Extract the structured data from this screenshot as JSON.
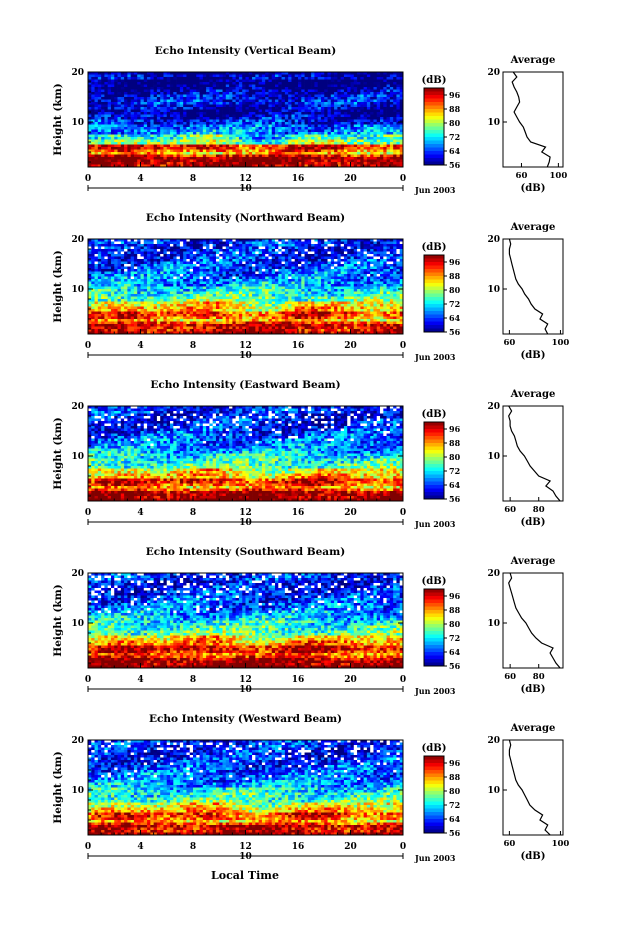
{
  "figure": {
    "x_axis_label": "Local Time",
    "date_label": "Jun 2003",
    "date_tick_label": "10",
    "y_axis_label": "Height (km)",
    "colorbar_unit": "(dB)",
    "colorbar_ticks": [
      "56",
      "64",
      "72",
      "80",
      "88",
      "96"
    ],
    "average_title": "Average",
    "average_xlabel": "(dB)"
  },
  "chart_data": [
    {
      "type": "heatmap",
      "title": "Echo Intensity (Vertical Beam)",
      "x_ticks": [
        "0",
        "4",
        "8",
        "12",
        "16",
        "20",
        "0"
      ],
      "xlim": [
        0,
        24
      ],
      "y_ticks": [
        "20",
        "10"
      ],
      "ylim": [
        1,
        20
      ],
      "colorbar": {
        "range": [
          56,
          100
        ],
        "ticks": [
          56,
          64,
          72,
          80,
          88,
          96
        ]
      },
      "average_profile": {
        "x_ticks": [
          "60",
          "100"
        ],
        "xlim": [
          40,
          105
        ],
        "height_km": [
          1,
          2,
          3,
          4,
          5,
          6,
          7,
          8,
          9,
          10,
          11,
          12,
          13,
          14,
          15,
          16,
          17,
          18,
          19,
          20
        ],
        "db": [
          88,
          90,
          91,
          82,
          86,
          70,
          66,
          64,
          62,
          58,
          55,
          52,
          55,
          58,
          57,
          55,
          52,
          50,
          55,
          51
        ]
      }
    },
    {
      "type": "heatmap",
      "title": "Echo Intensity (Northward Beam)",
      "x_ticks": [
        "0",
        "4",
        "8",
        "12",
        "16",
        "20",
        "0"
      ],
      "xlim": [
        0,
        24
      ],
      "y_ticks": [
        "20",
        "10"
      ],
      "ylim": [
        1,
        20
      ],
      "colorbar": {
        "range": [
          56,
          100
        ],
        "ticks": [
          56,
          64,
          72,
          80,
          88,
          96
        ]
      },
      "average_profile": {
        "x_ticks": [
          "60",
          "100"
        ],
        "xlim": [
          55,
          102
        ],
        "height_km": [
          1,
          2,
          3,
          4,
          5,
          6,
          7,
          8,
          9,
          10,
          11,
          12,
          13,
          14,
          15,
          16,
          17,
          18,
          19,
          20
        ],
        "db": [
          90,
          88,
          90,
          84,
          86,
          80,
          77,
          75,
          72,
          70,
          67,
          65,
          64,
          63,
          62,
          61,
          60,
          60,
          61,
          60
        ]
      }
    },
    {
      "type": "heatmap",
      "title": "Echo Intensity (Eastward Beam)",
      "x_ticks": [
        "0",
        "4",
        "8",
        "12",
        "16",
        "20",
        "0"
      ],
      "xlim": [
        0,
        24
      ],
      "y_ticks": [
        "20",
        "10"
      ],
      "ylim": [
        1,
        20
      ],
      "colorbar": {
        "range": [
          56,
          100
        ],
        "ticks": [
          56,
          64,
          72,
          80,
          88,
          96
        ]
      },
      "average_profile": {
        "x_ticks": [
          "60",
          "80"
        ],
        "xlim": [
          55,
          97
        ],
        "height_km": [
          1,
          2,
          3,
          4,
          5,
          6,
          7,
          8,
          9,
          10,
          11,
          12,
          13,
          14,
          15,
          16,
          17,
          18,
          19,
          20
        ],
        "db": [
          95,
          92,
          90,
          85,
          88,
          80,
          77,
          74,
          72,
          70,
          67,
          65,
          64,
          63,
          61,
          60,
          60,
          59,
          61,
          59
        ]
      }
    },
    {
      "type": "heatmap",
      "title": "Echo Intensity (Southward Beam)",
      "x_ticks": [
        "0",
        "4",
        "8",
        "12",
        "16",
        "20",
        "0"
      ],
      "xlim": [
        0,
        24
      ],
      "y_ticks": [
        "20",
        "10"
      ],
      "ylim": [
        1,
        20
      ],
      "colorbar": {
        "range": [
          56,
          100
        ],
        "ticks": [
          56,
          64,
          72,
          80,
          88,
          96
        ]
      },
      "average_profile": {
        "x_ticks": [
          "60",
          "80"
        ],
        "xlim": [
          55,
          97
        ],
        "height_km": [
          1,
          2,
          3,
          4,
          5,
          6,
          7,
          8,
          9,
          10,
          11,
          12,
          13,
          14,
          15,
          16,
          17,
          18,
          19,
          20
        ],
        "db": [
          95,
          92,
          90,
          88,
          90,
          82,
          78,
          75,
          73,
          71,
          68,
          66,
          64,
          63,
          62,
          61,
          60,
          59,
          61,
          60
        ]
      }
    },
    {
      "type": "heatmap",
      "title": "Echo Intensity (Westward Beam)",
      "x_ticks": [
        "0",
        "4",
        "8",
        "12",
        "16",
        "20",
        "0"
      ],
      "xlim": [
        0,
        24
      ],
      "y_ticks": [
        "20",
        "10"
      ],
      "ylim": [
        1,
        20
      ],
      "colorbar": {
        "range": [
          56,
          100
        ],
        "ticks": [
          56,
          64,
          72,
          80,
          88,
          96
        ]
      },
      "average_profile": {
        "x_ticks": [
          "60",
          "100"
        ],
        "xlim": [
          55,
          102
        ],
        "height_km": [
          1,
          2,
          3,
          4,
          5,
          6,
          7,
          8,
          9,
          10,
          11,
          12,
          13,
          14,
          15,
          16,
          17,
          18,
          19,
          20
        ],
        "db": [
          92,
          88,
          90,
          84,
          86,
          80,
          76,
          74,
          72,
          70,
          67,
          65,
          64,
          63,
          62,
          61,
          60,
          60,
          61,
          60
        ]
      }
    }
  ]
}
